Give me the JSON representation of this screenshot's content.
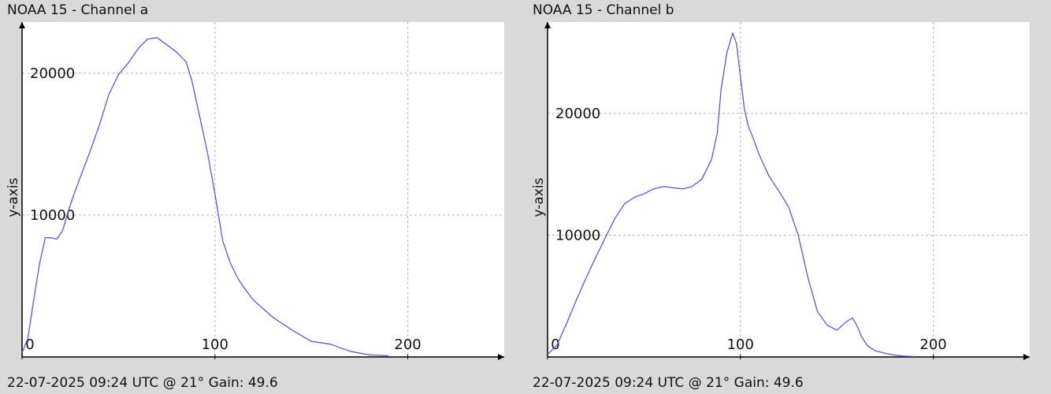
{
  "chart_data": [
    {
      "type": "line",
      "title": "NOAA 15 - Channel a",
      "ylabel": "y-axis",
      "xlabel": "",
      "footer": "22-07-2025 09:24 UTC @ 21° Gain: 49.6",
      "xlim": [
        0,
        250
      ],
      "ylim": [
        0,
        23600
      ],
      "x_ticks": [
        "0",
        "100",
        "200"
      ],
      "y_ticks": [
        "10000",
        "20000"
      ],
      "x_tick_values": [
        0,
        100,
        200
      ],
      "y_tick_values": [
        10000,
        20000
      ],
      "grid": true,
      "line_color": "#5a5ad0",
      "series": [
        {
          "x": [
            0,
            3,
            6,
            9,
            12,
            15,
            18,
            21,
            24,
            27,
            30,
            35,
            40,
            45,
            50,
            55,
            60,
            65,
            70,
            75,
            80,
            85,
            88,
            92,
            96,
            100,
            104,
            108,
            112,
            116,
            120,
            130,
            140,
            150,
            160,
            170,
            180,
            190
          ],
          "y": [
            300,
            1300,
            4000,
            6500,
            8400,
            8400,
            8300,
            8900,
            10300,
            11500,
            12600,
            14400,
            16300,
            18500,
            19900,
            20700,
            21700,
            22400,
            22500,
            22000,
            21500,
            20800,
            19500,
            17000,
            14500,
            11500,
            8200,
            6600,
            5500,
            4700,
            4000,
            2800,
            1900,
            1100,
            900,
            400,
            150,
            80
          ]
        }
      ]
    },
    {
      "type": "line",
      "title": "NOAA 15 - Channel b",
      "ylabel": "y-axis",
      "xlabel": "",
      "footer": "22-07-2025 09:24 UTC @ 21° Gain: 49.6",
      "xlim": [
        0,
        250
      ],
      "ylim": [
        0,
        27500
      ],
      "x_ticks": [
        "0",
        "100",
        "200"
      ],
      "y_ticks": [
        "10000",
        "20000"
      ],
      "x_tick_values": [
        0,
        100,
        200
      ],
      "y_tick_values": [
        10000,
        20000
      ],
      "grid": true,
      "line_color": "#5a5ad0",
      "series": [
        {
          "x": [
            0,
            5,
            10,
            15,
            20,
            25,
            30,
            35,
            40,
            45,
            50,
            55,
            60,
            65,
            70,
            75,
            80,
            85,
            88,
            90,
            93,
            96,
            98,
            100,
            102,
            104,
            107,
            110,
            115,
            120,
            125,
            130,
            135,
            140,
            145,
            150,
            155,
            158,
            160,
            163,
            166,
            170,
            175,
            180,
            185,
            190
          ],
          "y": [
            200,
            1000,
            2800,
            4700,
            6500,
            8200,
            9800,
            11400,
            12600,
            13100,
            13400,
            13800,
            14000,
            13900,
            13800,
            14000,
            14600,
            16200,
            18400,
            22000,
            25000,
            26600,
            25700,
            23000,
            20400,
            19000,
            17800,
            16500,
            14800,
            13600,
            12300,
            10000,
            6500,
            3700,
            2600,
            2200,
            2900,
            3200,
            2700,
            1600,
            900,
            500,
            300,
            150,
            70,
            40
          ]
        }
      ]
    }
  ]
}
